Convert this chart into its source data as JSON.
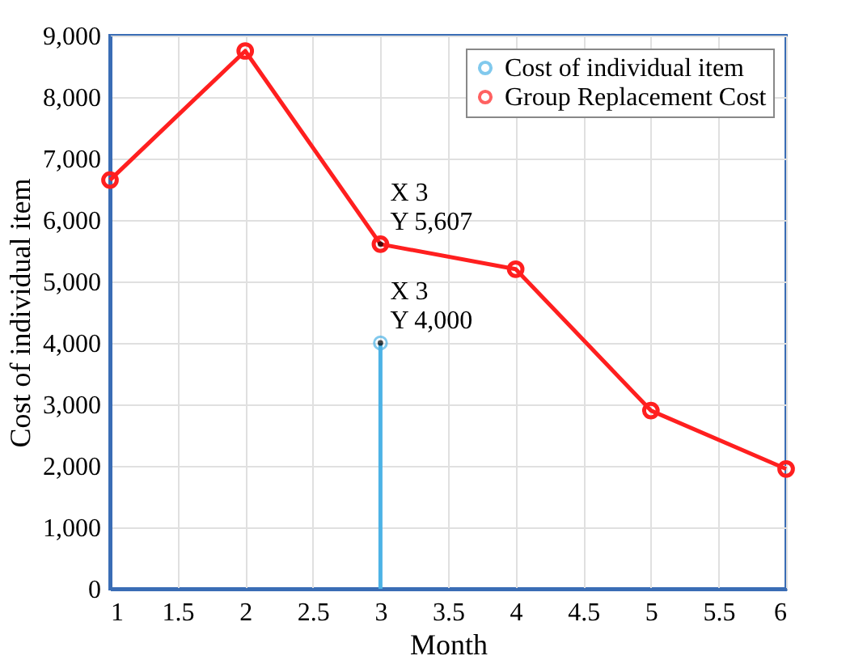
{
  "chart_data": {
    "type": "line",
    "xlabel": "Month",
    "ylabel": "Cost of individual item",
    "x": [
      1,
      2,
      3,
      4,
      5,
      6
    ],
    "series": [
      {
        "name": "Cost of individual item",
        "type": "lollipop",
        "color": "#4db3e6",
        "x": [
          3
        ],
        "values": [
          4000
        ]
      },
      {
        "name": "Group Replacement Cost",
        "type": "line",
        "color": "#ff1f1f",
        "values": [
          6650,
          8750,
          5607,
          5200,
          2900,
          1950
        ]
      }
    ],
    "xlim": [
      1,
      6
    ],
    "xticks": [
      1,
      1.5,
      2,
      2.5,
      3,
      3.5,
      4,
      4.5,
      5,
      5.5,
      6
    ],
    "ylim": [
      0,
      9000
    ],
    "yticks": [
      {
        "value": 0,
        "label": "0"
      },
      {
        "value": 1000,
        "label": "1,000"
      },
      {
        "value": 2000,
        "label": "2,000"
      },
      {
        "value": 3000,
        "label": "3,000"
      },
      {
        "value": 4000,
        "label": "4,000"
      },
      {
        "value": 5000,
        "label": "5,000"
      },
      {
        "value": 6000,
        "label": "6,000"
      },
      {
        "value": 7000,
        "label": "7,000"
      },
      {
        "value": 8000,
        "label": "8,000"
      },
      {
        "value": 9000,
        "label": "9,000"
      }
    ],
    "annotations": [
      {
        "text": "X 3\nY 5,607",
        "x": 3,
        "y": 5607
      },
      {
        "text": "X 3\nY 4,000",
        "x": 3,
        "y": 4000
      }
    ],
    "grid": true,
    "legend": "top right",
    "marker": "circle",
    "line_style": "solid"
  }
}
